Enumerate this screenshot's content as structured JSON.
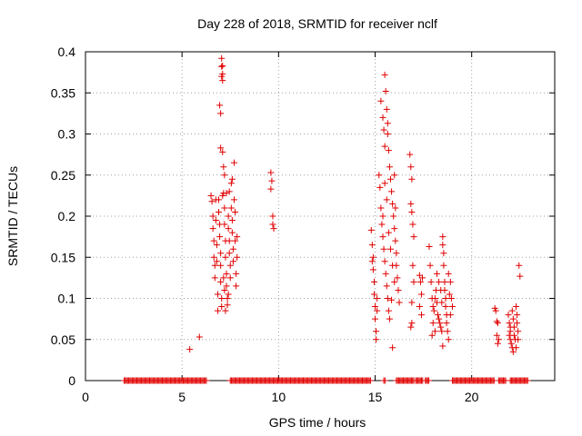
{
  "chart_data": {
    "type": "scatter",
    "title": "Day 228 of 2018, SRMTID for receiver nclf",
    "xlabel": "GPS time / hours",
    "ylabel": "SRMTID / TECUs",
    "xlim": [
      0,
      24.3
    ],
    "ylim": [
      0,
      0.4
    ],
    "x_ticks": [
      0,
      5,
      10,
      15,
      20
    ],
    "x_tick_labels": [
      "0",
      "5",
      "10",
      "15",
      "20"
    ],
    "y_ticks": [
      0,
      0.05,
      0.1,
      0.15,
      0.2,
      0.25,
      0.3,
      0.35,
      0.4
    ],
    "y_tick_labels": [
      "0",
      "0.05",
      "0.1",
      "0.15",
      "0.2",
      "0.25",
      "0.3",
      "0.35",
      "0.4"
    ],
    "grid": true,
    "marker": "+",
    "color": "#e00000",
    "series": [
      {
        "name": "SRMTID",
        "points": [
          [
            5.4,
            0.038
          ],
          [
            5.9,
            0.053
          ],
          [
            6.5,
            0.225
          ],
          [
            6.55,
            0.218
          ],
          [
            6.6,
            0.2
          ],
          [
            6.6,
            0.185
          ],
          [
            6.65,
            0.17
          ],
          [
            6.65,
            0.15
          ],
          [
            6.7,
            0.14
          ],
          [
            6.7,
            0.125
          ],
          [
            6.75,
            0.22
          ],
          [
            6.75,
            0.195
          ],
          [
            6.8,
            0.165
          ],
          [
            6.8,
            0.145
          ],
          [
            6.85,
            0.105
          ],
          [
            6.85,
            0.085
          ],
          [
            6.9,
            0.22
          ],
          [
            6.9,
            0.205
          ],
          [
            6.95,
            0.19
          ],
          [
            6.95,
            0.175
          ],
          [
            7.0,
            0.155
          ],
          [
            7.0,
            0.14
          ],
          [
            7.0,
            0.12
          ],
          [
            7.05,
            0.1
          ],
          [
            7.05,
            0.09
          ],
          [
            7.1,
            0.225
          ],
          [
            6.95,
            0.335
          ],
          [
            7.0,
            0.325
          ],
          [
            7.05,
            0.392
          ],
          [
            7.05,
            0.382
          ],
          [
            7.1,
            0.383
          ],
          [
            7.1,
            0.373
          ],
          [
            7.05,
            0.37
          ],
          [
            7.1,
            0.365
          ],
          [
            7.0,
            0.283
          ],
          [
            7.1,
            0.278
          ],
          [
            7.15,
            0.26
          ],
          [
            7.2,
            0.25
          ],
          [
            7.15,
            0.228
          ],
          [
            7.2,
            0.21
          ],
          [
            7.2,
            0.19
          ],
          [
            7.25,
            0.17
          ],
          [
            7.25,
            0.15
          ],
          [
            7.3,
            0.13
          ],
          [
            7.3,
            0.115
          ],
          [
            7.35,
            0.1
          ],
          [
            7.35,
            0.092
          ],
          [
            7.15,
            0.125
          ],
          [
            7.2,
            0.11
          ],
          [
            7.25,
            0.085
          ],
          [
            7.4,
            0.2
          ],
          [
            7.4,
            0.185
          ],
          [
            7.45,
            0.17
          ],
          [
            7.45,
            0.155
          ],
          [
            7.5,
            0.14
          ],
          [
            7.5,
            0.125
          ],
          [
            7.55,
            0.24
          ],
          [
            7.55,
            0.21
          ],
          [
            7.6,
            0.195
          ],
          [
            7.6,
            0.18
          ],
          [
            7.65,
            0.16
          ],
          [
            7.65,
            0.145
          ],
          [
            7.7,
            0.265
          ],
          [
            7.7,
            0.22
          ],
          [
            7.75,
            0.205
          ],
          [
            7.75,
            0.17
          ],
          [
            7.3,
            0.228
          ],
          [
            7.45,
            0.23
          ],
          [
            7.6,
            0.245
          ],
          [
            7.8,
            0.13
          ],
          [
            7.8,
            0.115
          ],
          [
            7.85,
            0.15
          ],
          [
            7.85,
            0.175
          ],
          [
            7.4,
            0.105
          ],
          [
            9.6,
            0.253
          ],
          [
            9.65,
            0.243
          ],
          [
            9.6,
            0.233
          ],
          [
            9.7,
            0.2
          ],
          [
            9.7,
            0.19
          ],
          [
            9.75,
            0.185
          ],
          [
            14.8,
            0.183
          ],
          [
            14.85,
            0.165
          ],
          [
            14.9,
            0.15
          ],
          [
            14.9,
            0.135
          ],
          [
            14.95,
            0.12
          ],
          [
            14.95,
            0.105
          ],
          [
            15.0,
            0.09
          ],
          [
            15.0,
            0.075
          ],
          [
            15.05,
            0.06
          ],
          [
            15.05,
            0.05
          ],
          [
            14.85,
            0.145
          ],
          [
            15.1,
            0.1
          ],
          [
            15.1,
            0.085
          ],
          [
            15.2,
            0.25
          ],
          [
            15.25,
            0.235
          ],
          [
            15.3,
            0.21
          ],
          [
            15.35,
            0.19
          ],
          [
            15.4,
            0.175
          ],
          [
            15.45,
            0.16
          ],
          [
            15.5,
            0.145
          ],
          [
            15.55,
            0.13
          ],
          [
            15.6,
            0.115
          ],
          [
            15.65,
            0.1
          ],
          [
            15.7,
            0.085
          ],
          [
            15.75,
            0.075
          ],
          [
            15.3,
            0.34
          ],
          [
            15.4,
            0.32
          ],
          [
            15.45,
            0.305
          ],
          [
            15.5,
            0.285
          ],
          [
            15.5,
            0.372
          ],
          [
            15.55,
            0.352
          ],
          [
            15.6,
            0.33
          ],
          [
            15.65,
            0.313
          ],
          [
            15.65,
            0.3
          ],
          [
            15.7,
            0.28
          ],
          [
            15.75,
            0.26
          ],
          [
            15.8,
            0.245
          ],
          [
            15.85,
            0.23
          ],
          [
            15.9,
            0.215
          ],
          [
            15.95,
            0.2
          ],
          [
            16.0,
            0.185
          ],
          [
            16.05,
            0.17
          ],
          [
            16.1,
            0.155
          ],
          [
            16.1,
            0.14
          ],
          [
            16.15,
            0.125
          ],
          [
            16.2,
            0.11
          ],
          [
            16.25,
            0.095
          ],
          [
            15.4,
            0.2
          ],
          [
            15.5,
            0.24
          ],
          [
            15.6,
            0.22
          ],
          [
            15.7,
            0.18
          ],
          [
            15.8,
            0.16
          ],
          [
            15.9,
            0.14
          ],
          [
            16.0,
            0.12
          ],
          [
            15.9,
            0.04
          ],
          [
            15.85,
            0.098
          ],
          [
            16.0,
            0.25
          ],
          [
            16.05,
            0.21
          ],
          [
            16.8,
            0.275
          ],
          [
            16.85,
            0.26
          ],
          [
            16.9,
            0.245
          ],
          [
            16.85,
            0.215
          ],
          [
            16.9,
            0.205
          ],
          [
            16.95,
            0.19
          ],
          [
            17.0,
            0.175
          ],
          [
            16.95,
            0.14
          ],
          [
            17.0,
            0.12
          ],
          [
            16.9,
            0.095
          ],
          [
            16.9,
            0.07
          ],
          [
            16.85,
            0.065
          ],
          [
            17.3,
            0.128
          ],
          [
            17.35,
            0.12
          ],
          [
            17.4,
            0.105
          ],
          [
            17.45,
            0.125
          ],
          [
            17.3,
            0.09
          ],
          [
            17.4,
            0.08
          ],
          [
            17.8,
            0.163
          ],
          [
            17.85,
            0.14
          ],
          [
            17.9,
            0.12
          ],
          [
            17.95,
            0.1
          ],
          [
            18.0,
            0.09
          ],
          [
            18.05,
            0.085
          ],
          [
            18.1,
            0.1
          ],
          [
            18.15,
            0.11
          ],
          [
            18.2,
            0.095
          ],
          [
            18.25,
            0.08
          ],
          [
            18.3,
            0.075
          ],
          [
            18.35,
            0.07
          ],
          [
            18.4,
            0.065
          ],
          [
            18.45,
            0.06
          ],
          [
            18.5,
            0.175
          ],
          [
            18.5,
            0.165
          ],
          [
            18.55,
            0.155
          ],
          [
            18.55,
            0.14
          ],
          [
            18.6,
            0.12
          ],
          [
            18.6,
            0.11
          ],
          [
            18.65,
            0.1
          ],
          [
            18.65,
            0.09
          ],
          [
            18.7,
            0.08
          ],
          [
            18.7,
            0.07
          ],
          [
            18.75,
            0.06
          ],
          [
            18.8,
            0.05
          ],
          [
            18.5,
            0.042
          ],
          [
            18.9,
            0.12
          ],
          [
            18.95,
            0.1
          ],
          [
            19.0,
            0.09
          ],
          [
            18.0,
            0.07
          ],
          [
            18.1,
            0.06
          ],
          [
            17.95,
            0.055
          ],
          [
            18.2,
            0.13
          ],
          [
            18.3,
            0.12
          ],
          [
            18.4,
            0.11
          ],
          [
            18.45,
            0.095
          ],
          [
            18.8,
            0.13
          ],
          [
            18.85,
            0.105
          ],
          [
            18.9,
            0.08
          ],
          [
            21.2,
            0.088
          ],
          [
            21.25,
            0.085
          ],
          [
            21.3,
            0.072
          ],
          [
            21.35,
            0.07
          ],
          [
            21.3,
            0.055
          ],
          [
            21.4,
            0.05
          ],
          [
            21.35,
            0.045
          ],
          [
            21.9,
            0.08
          ],
          [
            21.95,
            0.07
          ],
          [
            22.0,
            0.06
          ],
          [
            22.0,
            0.05
          ],
          [
            22.05,
            0.045
          ],
          [
            22.1,
            0.04
          ],
          [
            22.15,
            0.035
          ],
          [
            22.1,
            0.085
          ],
          [
            22.15,
            0.075
          ],
          [
            22.2,
            0.065
          ],
          [
            22.2,
            0.055
          ],
          [
            22.25,
            0.05
          ],
          [
            22.3,
            0.04
          ],
          [
            22.3,
            0.09
          ],
          [
            22.35,
            0.08
          ],
          [
            22.35,
            0.07
          ],
          [
            22.4,
            0.06
          ],
          [
            22.4,
            0.05
          ],
          [
            22.45,
            0.14
          ],
          [
            22.5,
            0.127
          ],
          [
            22.0,
            0.065
          ],
          [
            21.95,
            0.055
          ]
        ]
      }
    ],
    "zero_runs": [
      [
        2.0,
        6.3
      ],
      [
        7.5,
        14.8
      ],
      [
        15.45,
        15.55
      ],
      [
        16.1,
        17.0
      ],
      [
        17.1,
        17.5
      ],
      [
        17.6,
        17.8
      ],
      [
        19.0,
        21.2
      ],
      [
        21.4,
        21.8
      ],
      [
        22.0,
        22.9
      ]
    ]
  }
}
